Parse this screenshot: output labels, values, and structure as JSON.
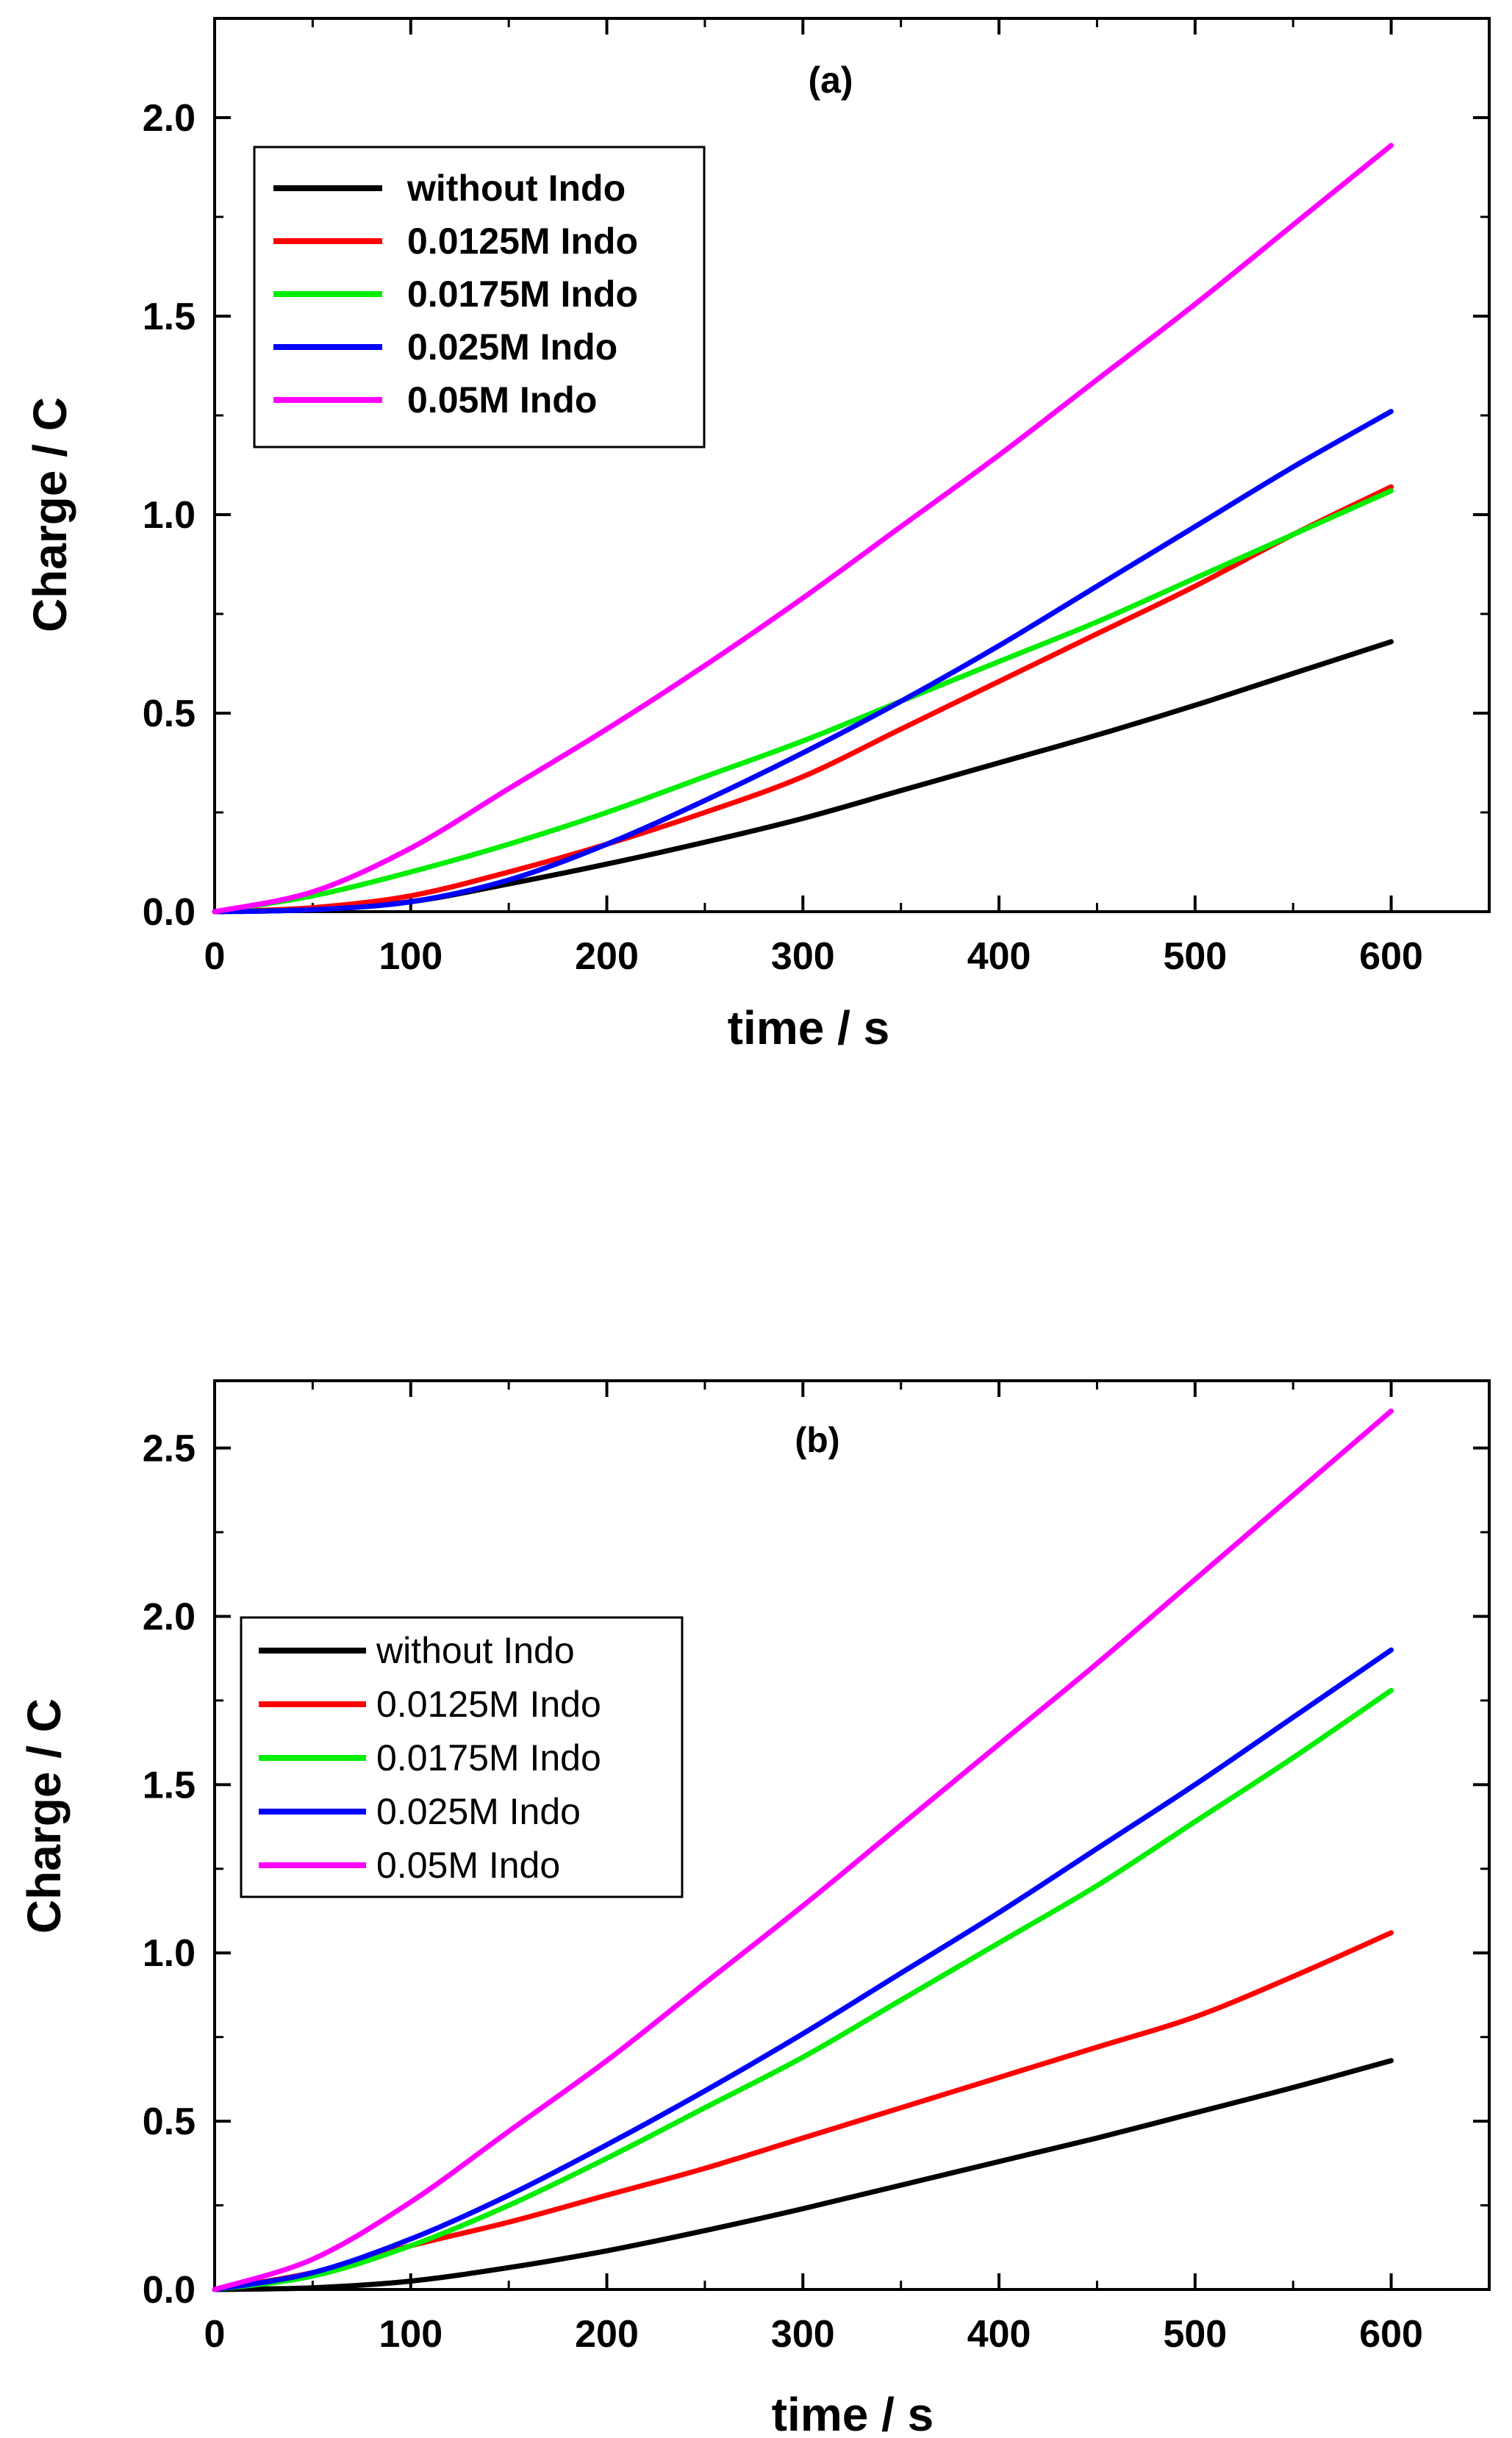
{
  "chart_data": [
    {
      "type": "line",
      "panel_label": "(a)",
      "xlabel": "time / s",
      "ylabel": "Charge / C",
      "xlim": [
        0,
        650
      ],
      "ylim": [
        0,
        2.25
      ],
      "xticks": [
        0,
        100,
        200,
        300,
        400,
        500,
        600
      ],
      "yticks": [
        0.0,
        0.5,
        1.0,
        1.5,
        2.0
      ],
      "xtick_labels": [
        "0",
        "100",
        "200",
        "300",
        "400",
        "500",
        "600"
      ],
      "ytick_labels": [
        "0.0",
        "0.5",
        "1.0",
        "1.5",
        "2.0"
      ],
      "legend_position": "top-left",
      "series": [
        {
          "name": "without Indo",
          "color": "#000000",
          "x": [
            0,
            50,
            100,
            150,
            200,
            250,
            300,
            350,
            400,
            450,
            500,
            550,
            600
          ],
          "y": [
            0,
            0.005,
            0.025,
            0.07,
            0.12,
            0.175,
            0.235,
            0.305,
            0.375,
            0.445,
            0.52,
            0.6,
            0.68
          ]
        },
        {
          "name": "0.0125M Indo",
          "color": "#ff0000",
          "x": [
            0,
            50,
            100,
            150,
            200,
            250,
            300,
            350,
            400,
            450,
            500,
            550,
            600
          ],
          "y": [
            0,
            0.01,
            0.04,
            0.1,
            0.17,
            0.25,
            0.34,
            0.46,
            0.58,
            0.7,
            0.82,
            0.95,
            1.07
          ]
        },
        {
          "name": "0.0175M Indo",
          "color": "#00ee00",
          "x": [
            0,
            50,
            100,
            150,
            200,
            250,
            300,
            350,
            400,
            450,
            500,
            550,
            600
          ],
          "y": [
            0,
            0.04,
            0.1,
            0.17,
            0.25,
            0.34,
            0.43,
            0.53,
            0.63,
            0.73,
            0.84,
            0.95,
            1.06
          ]
        },
        {
          "name": "0.025M Indo",
          "color": "#0000ff",
          "x": [
            0,
            50,
            100,
            150,
            200,
            250,
            300,
            350,
            400,
            450,
            500,
            550,
            600
          ],
          "y": [
            0,
            0.005,
            0.025,
            0.08,
            0.17,
            0.28,
            0.4,
            0.53,
            0.67,
            0.82,
            0.97,
            1.12,
            1.26
          ]
        },
        {
          "name": "0.05M Indo",
          "color": "#ff00ff",
          "x": [
            0,
            50,
            100,
            150,
            200,
            250,
            300,
            350,
            400,
            450,
            500,
            550,
            600
          ],
          "y": [
            0,
            0.05,
            0.16,
            0.31,
            0.46,
            0.62,
            0.79,
            0.97,
            1.15,
            1.34,
            1.53,
            1.73,
            1.93
          ]
        }
      ]
    },
    {
      "type": "line",
      "panel_label": "(b)",
      "xlabel": "time / s",
      "ylabel": "Charge / C",
      "xlim": [
        0,
        650
      ],
      "ylim": [
        0,
        2.7
      ],
      "xticks": [
        0,
        100,
        200,
        300,
        400,
        500,
        600
      ],
      "yticks": [
        0.0,
        0.5,
        1.0,
        1.5,
        2.0,
        2.5
      ],
      "xtick_labels": [
        "0",
        "100",
        "200",
        "300",
        "400",
        "500",
        "600"
      ],
      "ytick_labels": [
        "0.0",
        "0.5",
        "1.0",
        "1.5",
        "2.0",
        "2.5"
      ],
      "legend_position": "center-left",
      "series": [
        {
          "name": "without Indo",
          "color": "#000000",
          "x": [
            0,
            50,
            100,
            150,
            200,
            250,
            300,
            350,
            400,
            450,
            500,
            550,
            600
          ],
          "y": [
            0,
            0.005,
            0.025,
            0.065,
            0.115,
            0.175,
            0.24,
            0.31,
            0.38,
            0.45,
            0.525,
            0.6,
            0.68
          ]
        },
        {
          "name": "0.0125M Indo",
          "color": "#ff0000",
          "x": [
            0,
            50,
            100,
            150,
            200,
            250,
            300,
            350,
            400,
            450,
            500,
            550,
            600
          ],
          "y": [
            0,
            0.05,
            0.13,
            0.2,
            0.28,
            0.36,
            0.45,
            0.54,
            0.63,
            0.72,
            0.81,
            0.93,
            1.06
          ]
        },
        {
          "name": "0.0175M Indo",
          "color": "#00ee00",
          "x": [
            0,
            50,
            100,
            150,
            200,
            250,
            300,
            350,
            400,
            450,
            500,
            550,
            600
          ],
          "y": [
            0,
            0.04,
            0.13,
            0.25,
            0.39,
            0.54,
            0.69,
            0.86,
            1.03,
            1.2,
            1.39,
            1.58,
            1.78
          ]
        },
        {
          "name": "0.025M Indo",
          "color": "#0000ff",
          "x": [
            0,
            50,
            100,
            150,
            200,
            250,
            300,
            350,
            400,
            450,
            500,
            550,
            600
          ],
          "y": [
            0,
            0.05,
            0.15,
            0.28,
            0.43,
            0.59,
            0.76,
            0.94,
            1.12,
            1.31,
            1.5,
            1.7,
            1.9
          ]
        },
        {
          "name": "0.05M Indo",
          "color": "#ff00ff",
          "x": [
            0,
            50,
            100,
            150,
            200,
            250,
            300,
            350,
            400,
            450,
            500,
            550,
            600
          ],
          "y": [
            0,
            0.09,
            0.26,
            0.47,
            0.68,
            0.91,
            1.14,
            1.38,
            1.62,
            1.86,
            2.11,
            2.36,
            2.61
          ]
        }
      ]
    }
  ]
}
